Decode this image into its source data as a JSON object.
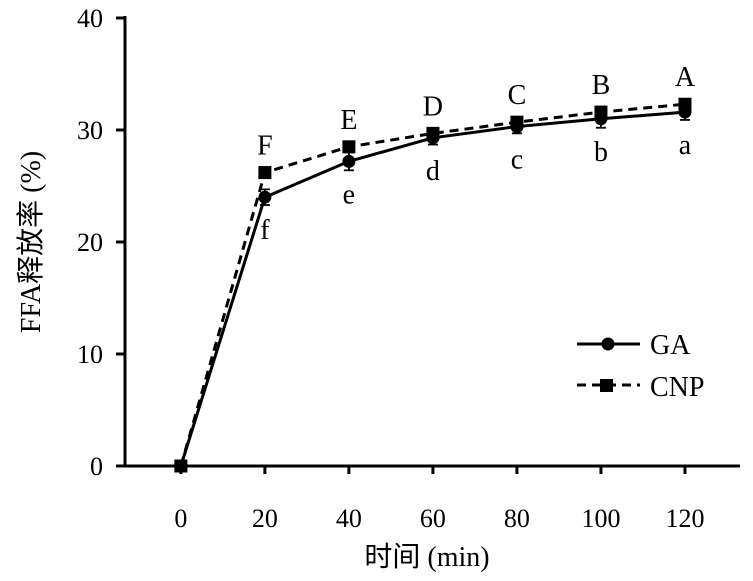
{
  "chart_data": {
    "type": "line",
    "xlabel": "时间 (min)",
    "ylabel": "FFA释放率 (%)",
    "x": [
      0,
      20,
      40,
      60,
      80,
      100,
      120
    ],
    "xticks": [
      0,
      20,
      40,
      60,
      80,
      100,
      120
    ],
    "yticks": [
      0,
      10,
      20,
      30,
      40
    ],
    "xlim": [
      -13.3,
      133.1
    ],
    "ylim": [
      0,
      40
    ],
    "grid": false,
    "legend_position": "right",
    "series": [
      {
        "name": "GA",
        "values": [
          0,
          24.0,
          27.2,
          29.3,
          30.3,
          31.0,
          31.6
        ],
        "errors": [
          0,
          0.7,
          0.8,
          0.6,
          0.6,
          0.8,
          0.7
        ],
        "letters": [
          "",
          "f",
          "e",
          "d",
          "c",
          "b",
          "a"
        ],
        "letter_position": "below",
        "marker": "circle",
        "line_style": "solid",
        "color": "#000000"
      },
      {
        "name": "CNP",
        "values": [
          0,
          26.2,
          28.5,
          29.7,
          30.7,
          31.6,
          32.3
        ],
        "errors": [
          0,
          0.4,
          0.4,
          0.4,
          0.4,
          0.4,
          0.4
        ],
        "letters": [
          "",
          "F",
          "E",
          "D",
          "C",
          "B",
          "A"
        ],
        "letter_position": "above",
        "marker": "square",
        "line_style": "dashed",
        "color": "#000000"
      }
    ]
  }
}
